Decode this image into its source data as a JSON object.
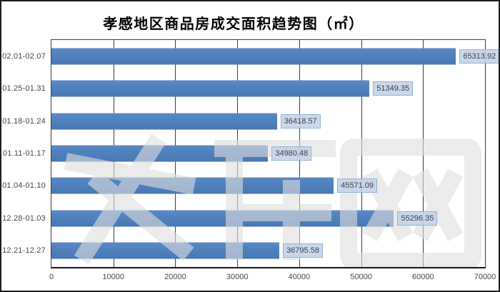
{
  "chart_data": {
    "type": "bar",
    "orientation": "horizontal",
    "title": "孝感地区商品房成交面积趋势图（㎡）",
    "categories": [
      "02.01-02.07",
      "01.25-01.31",
      "01.18-01.24",
      "01.11-01.17",
      "01.04-01.10",
      "12.28-01.03",
      "12.21-12.27"
    ],
    "values": [
      65313.92,
      51349.35,
      36418.57,
      34980.48,
      45571.09,
      55296.35,
      36795.58
    ],
    "value_labels": [
      "65313.92",
      "51349.35",
      "36418.57",
      "34980.48",
      "45571.09",
      "55296.35",
      "36795.58"
    ],
    "xlabel": "",
    "ylabel": "",
    "xlim": [
      0,
      70000
    ],
    "x_ticks": [
      0,
      10000,
      20000,
      30000,
      40000,
      50000,
      60000,
      70000
    ],
    "x_tick_labels": [
      "0",
      "10000",
      "20000",
      "30000",
      "40000",
      "50000",
      "60000",
      "70000"
    ],
    "grid": "vertical",
    "legend": "none",
    "colors": {
      "bar": "#4f81bd",
      "label_box_bg": "#c3d3e9",
      "label_box_border": "#94b1d4",
      "label_text": "#404040",
      "axis_text": "#474747",
      "gridline": "#3c3c3c",
      "axis_line": "#161616"
    }
  },
  "watermark": {
    "text": "孝居网"
  }
}
